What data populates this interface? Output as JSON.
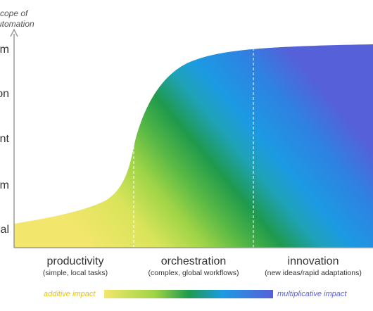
{
  "axis_title": [
    "cope of",
    "utomation"
  ],
  "levels": [
    "m",
    "on",
    "nt",
    "m",
    "al"
  ],
  "phases": [
    {
      "name": "productivity",
      "description": "(simple, local tasks)"
    },
    {
      "name": "orchestration",
      "description": "(complex, global workflows)"
    },
    {
      "name": "innovation",
      "description": "(new ideas/rapid adaptations)"
    }
  ],
  "legend": {
    "start": "additive impact",
    "end": "multiplicative impact"
  }
}
